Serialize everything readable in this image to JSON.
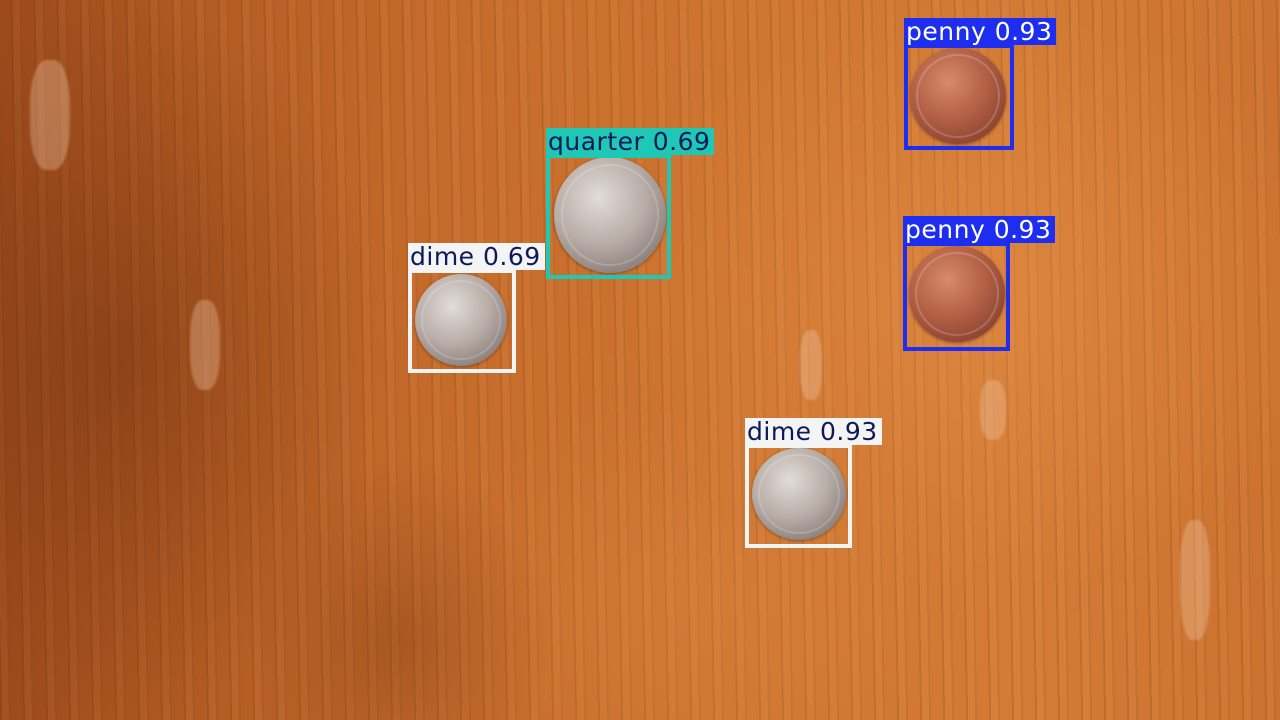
{
  "detections": [
    {
      "label": "penny",
      "confidence": "0.93",
      "box_color": "#1e2ef0",
      "label_text_color": "#ffffff",
      "coin": "copper"
    },
    {
      "label": "quarter",
      "confidence": "0.69",
      "box_color": "#1ec8b4",
      "label_text_color": "#0d1a5a",
      "coin": "silver"
    },
    {
      "label": "dime",
      "confidence": "0.69",
      "box_color": "#f4f4f4",
      "label_text_color": "#0d1a5a",
      "coin": "silver"
    },
    {
      "label": "penny",
      "confidence": "0.93",
      "box_color": "#1e2ef0",
      "label_text_color": "#ffffff",
      "coin": "copper"
    },
    {
      "label": "dime",
      "confidence": "0.93",
      "box_color": "#f4f4f4",
      "label_text_color": "#0d1a5a",
      "coin": "silver"
    }
  ]
}
